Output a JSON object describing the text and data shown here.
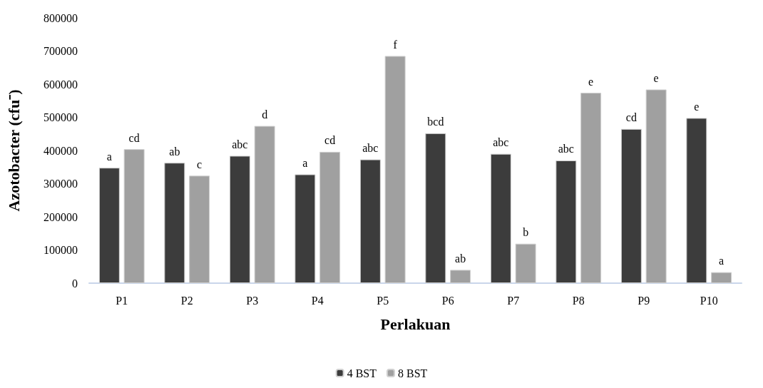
{
  "chart_data": {
    "type": "bar",
    "xlabel": "Perlakuan",
    "ylabel": "Azotobacter (cfu⁻)",
    "categories": [
      "P1",
      "P2",
      "P3",
      "P4",
      "P5",
      "P6",
      "P7",
      "P8",
      "P9",
      "P10"
    ],
    "series": [
      {
        "name": "4 BST",
        "color": "#3c3c3c",
        "values": [
          348000,
          363000,
          384000,
          328000,
          373000,
          452000,
          390000,
          370000,
          465000,
          498000
        ],
        "value_labels": [
          "a",
          "ab",
          "abc",
          "a",
          "abc",
          "bcd",
          "abc",
          "abc",
          "cd",
          "e"
        ]
      },
      {
        "name": "8 BST",
        "color": "#a0a0a0",
        "values": [
          404000,
          324000,
          474000,
          396000,
          685000,
          40000,
          119000,
          574000,
          584000,
          33000
        ],
        "value_labels": [
          "cd",
          "c",
          "d",
          "cd",
          "f",
          "ab",
          "b",
          "e",
          "e",
          "a"
        ]
      }
    ],
    "ylim": [
      0,
      800000
    ],
    "yticks": [
      0,
      100000,
      200000,
      300000,
      400000,
      500000,
      600000,
      700000,
      800000
    ],
    "grid": false,
    "legend": "bottom"
  }
}
